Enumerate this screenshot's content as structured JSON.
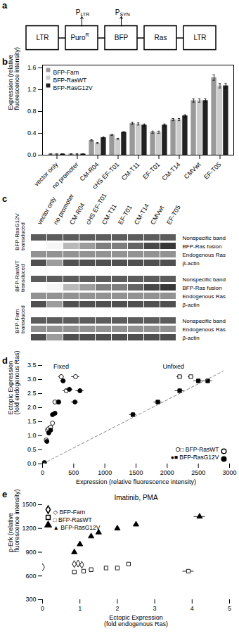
{
  "chart_data": [
    {
      "panel": "a",
      "type": "diagram",
      "elements": [
        {
          "label": "LTR"
        },
        {
          "label": "Puro",
          "superscript": "R"
        },
        {
          "label": "BFP"
        },
        {
          "label": "Ras"
        },
        {
          "label": "LTR"
        }
      ],
      "promoters": [
        {
          "label": "P",
          "subscript": "LTR",
          "element": 1
        },
        {
          "label": "P",
          "subscript": "SYN",
          "element": 2
        }
      ]
    },
    {
      "panel": "b",
      "type": "bar",
      "categories": [
        "vector only",
        "no promoter",
        "CM-R04",
        "cHS EF-T01",
        "CM-T11",
        "EF-T01",
        "CM-T14",
        "CMVwt",
        "EF-T05"
      ],
      "series": [
        {
          "name": "BFP-Farn",
          "color": "#999999",
          "values": [
            0.02,
            0.02,
            0.27,
            0.37,
            0.58,
            0.42,
            0.65,
            1.0,
            1.42
          ],
          "errors": [
            0.003,
            0.003,
            0.01,
            0.01,
            0.02,
            0.02,
            0.02,
            0.03,
            0.05
          ]
        },
        {
          "name": "BFP-RasWT",
          "color": "#cccccc",
          "values": [
            0.02,
            0.02,
            0.22,
            0.3,
            0.57,
            0.42,
            0.65,
            1.0,
            1.27
          ],
          "errors": [
            0.003,
            0.003,
            0.01,
            0.01,
            0.02,
            0.02,
            0.02,
            0.03,
            0.04
          ]
        },
        {
          "name": "BFP-RasG12V",
          "color": "#222222",
          "values": [
            0.02,
            0.02,
            0.32,
            0.42,
            0.55,
            0.55,
            0.72,
            1.0,
            1.27
          ],
          "errors": [
            0.003,
            0.003,
            0.01,
            0.01,
            0.02,
            0.02,
            0.02,
            0.03,
            0.04
          ]
        }
      ],
      "ylabel": "Expression (relative\nfluorescence intensity)",
      "ylim": [
        0.0,
        1.65
      ],
      "yticks": [
        {
          "value": 0,
          "label": "0.0"
        },
        0.4,
        0.8,
        1.2,
        1.6
      ],
      "legend": "upper left"
    },
    {
      "panel": "c",
      "type": "heatmap",
      "columns": [
        "vector only",
        "no promoter",
        "CM-R04",
        "cHS EF-T01",
        "CM-T11",
        "EF-T01",
        "CM-T14",
        "CMVwt",
        "EF-T05"
      ],
      "sections": [
        {
          "name": "BFP-RasG12V\ntransduced",
          "rows": [
            {
              "label": "Nonspecific band",
              "values": [
                0.82,
                0.82,
                0.82,
                0.82,
                0.82,
                0.82,
                0.82,
                0.82,
                0.82
              ]
            },
            {
              "label": "BFP-Ras fusion",
              "values": [
                0.0,
                0.05,
                0.35,
                0.5,
                0.65,
                0.65,
                0.78,
                0.92,
                1.0
              ]
            },
            {
              "label": "Endogenous Ras",
              "values": [
                0.55,
                0.55,
                0.55,
                0.55,
                0.55,
                0.55,
                0.55,
                0.55,
                0.55
              ]
            },
            {
              "label": "β-actin",
              "values": [
                0.88,
                0.5,
                0.88,
                0.88,
                0.88,
                0.88,
                0.88,
                0.88,
                0.88
              ]
            }
          ]
        },
        {
          "name": "BFP-RasWT\ntransduced",
          "rows": [
            {
              "label": "Nonspecific band",
              "values": [
                0.82,
                0.82,
                0.82,
                0.82,
                0.82,
                0.82,
                0.82,
                0.82,
                0.82
              ]
            },
            {
              "label": "BFP-Ras fusion",
              "values": [
                0.0,
                0.05,
                0.35,
                0.5,
                0.65,
                0.65,
                0.78,
                0.92,
                1.0
              ]
            },
            {
              "label": "Endogenous Ras",
              "values": [
                0.55,
                0.55,
                0.55,
                0.55,
                0.55,
                0.55,
                0.55,
                0.55,
                0.55
              ]
            },
            {
              "label": "β-actin",
              "values": [
                0.88,
                0.5,
                0.88,
                0.88,
                0.88,
                0.88,
                0.88,
                0.88,
                0.88
              ]
            }
          ]
        },
        {
          "name": "BFP-Farn\ntransduced",
          "rows": [
            {
              "label": "Nonspecific band",
              "values": [
                0.82,
                0.82,
                0.82,
                0.82,
                0.82,
                0.82,
                0.82,
                0.82,
                0.82
              ]
            },
            {
              "label": "Endogenous Ras",
              "values": [
                0.55,
                0.55,
                0.55,
                0.55,
                0.55,
                0.55,
                0.55,
                0.55,
                0.55
              ]
            },
            {
              "label": "β-actin",
              "values": [
                0.88,
                0.5,
                0.88,
                0.88,
                0.88,
                0.88,
                0.88,
                0.88,
                0.88
              ]
            }
          ]
        }
      ]
    },
    {
      "panel": "d",
      "type": "scatter",
      "series": [
        {
          "name": "O□ BFP-RasWT",
          "type": "scatter",
          "marker": "circle",
          "color": "white",
          "x": [
            30,
            60,
            80,
            100,
            130,
            160,
            200,
            250,
            300,
            380,
            530
          ],
          "y": [
            0.05,
            0.85,
            1.2,
            1.25,
            1.3,
            1.45,
            2.2,
            2.2,
            3.1,
            2.6,
            3.1
          ],
          "xerr": [
            8,
            12,
            15,
            18,
            20,
            25,
            35,
            38,
            45,
            55,
            65
          ],
          "yerr": [
            0.02,
            0.05,
            0.05,
            0.05,
            0.05,
            0.05,
            0.05,
            0.05,
            0.08,
            0.05,
            0.08
          ]
        },
        {
          "name": "●■ BFP-RasG12V",
          "type": "scatter",
          "marker": "circle",
          "color": "black",
          "x": [
            30,
            70,
            100,
            130,
            160,
            200,
            260,
            330,
            430,
            520,
            600
          ],
          "y": [
            0.03,
            0.8,
            1.1,
            1.2,
            1.75,
            1.8,
            2.2,
            2.95,
            2.65,
            2.2,
            2.6
          ],
          "xerr": [
            8,
            12,
            18,
            20,
            22,
            28,
            38,
            48,
            55,
            58,
            65
          ],
          "yerr": [
            0.02,
            0.05,
            0.05,
            0.05,
            0.08,
            0.05,
            0.05,
            0.08,
            0.08,
            0.05,
            0.08
          ]
        },
        {
          "type": "scatter",
          "marker": "square",
          "color": "white",
          "x": [
            2200,
            2380
          ],
          "y": [
            3.1,
            3.1
          ],
          "xerr": [
            45,
            45
          ],
          "yerr": [
            0.05,
            0.05
          ]
        },
        {
          "type": "scatter",
          "marker": "square",
          "color": "black",
          "x": [
            1450,
            1850,
            2200,
            2500,
            2650
          ],
          "y": [
            1.75,
            2.2,
            2.6,
            2.95,
            2.95
          ],
          "xerr": [
            55,
            65,
            75,
            75,
            75
          ],
          "yerr": [
            0.08,
            0.05,
            0.08,
            0.05,
            0.05
          ]
        },
        {
          "type": "line",
          "color": "#888888",
          "line_style": "dashed",
          "x": [
            0,
            2900
          ],
          "y": [
            0,
            3.3
          ]
        }
      ],
      "annotations": [
        {
          "text": "Fixed",
          "x": 300,
          "y": 3.38
        },
        {
          "text": "Unfixed",
          "x": 2100,
          "y": 3.38
        }
      ],
      "xlabel": "Expression (relative fluorescence intensity)",
      "ylabel": "Ectopic Expression\n(fold endogenous Ras)",
      "xlim": [
        0,
        3000
      ],
      "ylim": [
        0,
        3.5
      ],
      "xticks": [
        0,
        500,
        1000,
        1500,
        2000,
        2500,
        3000
      ],
      "yticks": [
        {
          "value": 0,
          "label": "0.0"
        },
        0.5,
        {
          "value": 1,
          "label": "1.0"
        },
        1.5,
        {
          "value": 2,
          "label": "2.0"
        },
        2.5,
        {
          "value": 3,
          "label": "3.0"
        },
        3.5
      ],
      "legend": "lower right"
    },
    {
      "panel": "e",
      "type": "scatter",
      "title": "Imatinib, PMA",
      "series": [
        {
          "name": "◇ BFP-Farn",
          "type": "scatter",
          "marker": "diamond",
          "color": "white",
          "x": [
            0.0,
            0.85,
            0.95,
            1.05
          ],
          "y": [
            710,
            750,
            757,
            740
          ],
          "xerr": [
            0.0,
            0.05,
            0.05,
            0.05
          ],
          "yerr": [
            16,
            16,
            16,
            16
          ]
        },
        {
          "name": "□ BFP-RasWT",
          "type": "scatter",
          "marker": "square",
          "color": "white",
          "x": [
            0.85,
            1.1,
            1.3,
            1.7,
            2.0,
            2.3,
            3.9
          ],
          "y": [
            650,
            660,
            680,
            700,
            700,
            750,
            660
          ],
          "xerr": [
            0.05,
            0.05,
            0.05,
            0.05,
            0.05,
            0.05,
            0.15
          ],
          "yerr": [
            16,
            16,
            16,
            16,
            16,
            16,
            16
          ]
        },
        {
          "name": "▲ BFP-RasG12V",
          "type": "scatter",
          "marker": "triangle",
          "color": "black",
          "x": [
            0.85,
            1.0,
            1.3,
            1.5,
            2.0,
            2.5,
            4.2
          ],
          "y": [
            900,
            1000,
            1100,
            1150,
            1200,
            1250,
            1350
          ],
          "xerr": [
            0.05,
            0.05,
            0.05,
            0.05,
            0.05,
            0.05,
            0.15
          ],
          "yerr": [
            16,
            16,
            16,
            16,
            16,
            16,
            16
          ]
        }
      ],
      "xlabel": "Ectopic Expression\n(fold endogenous Ras)",
      "ylabel": "p-Erk (relative\nfluorescence intensity)",
      "xlim": [
        0,
        5
      ],
      "ylim": [
        300,
        1500
      ],
      "xticks": [
        0,
        1,
        2,
        3,
        4,
        5
      ],
      "yticks": [
        300,
        600,
        900,
        1200,
        1500
      ],
      "legend": "upper left"
    }
  ]
}
